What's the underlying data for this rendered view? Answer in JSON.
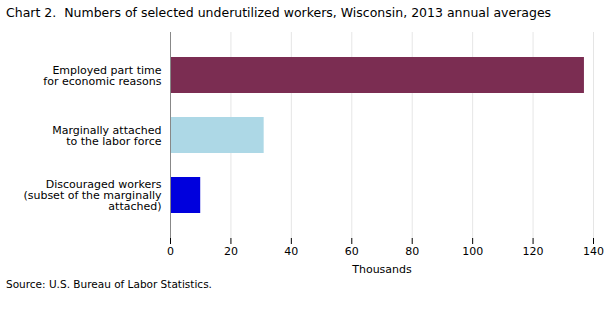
{
  "chart_data": {
    "type": "bar",
    "orientation": "horizontal",
    "title": "Chart 2.  Numbers of selected underutilized workers, Wisconsin, 2013 annual averages",
    "categories": [
      "Discouraged workers\n(subset of the marginally\n  attached)",
      "Marginally attached\nto the labor force",
      "Employed part time\nfor economic reasons"
    ],
    "values": [
      10,
      31,
      137
    ],
    "colors": [
      "#0000dd",
      "#add8e6",
      "#7b2d52"
    ],
    "xlim": [
      0,
      140
    ],
    "xticks": [
      0,
      20,
      40,
      60,
      80,
      100,
      120,
      140
    ],
    "xlabel": "Thousands",
    "grid": true,
    "source": "Source: U.S. Bureau of Labor Statistics."
  }
}
